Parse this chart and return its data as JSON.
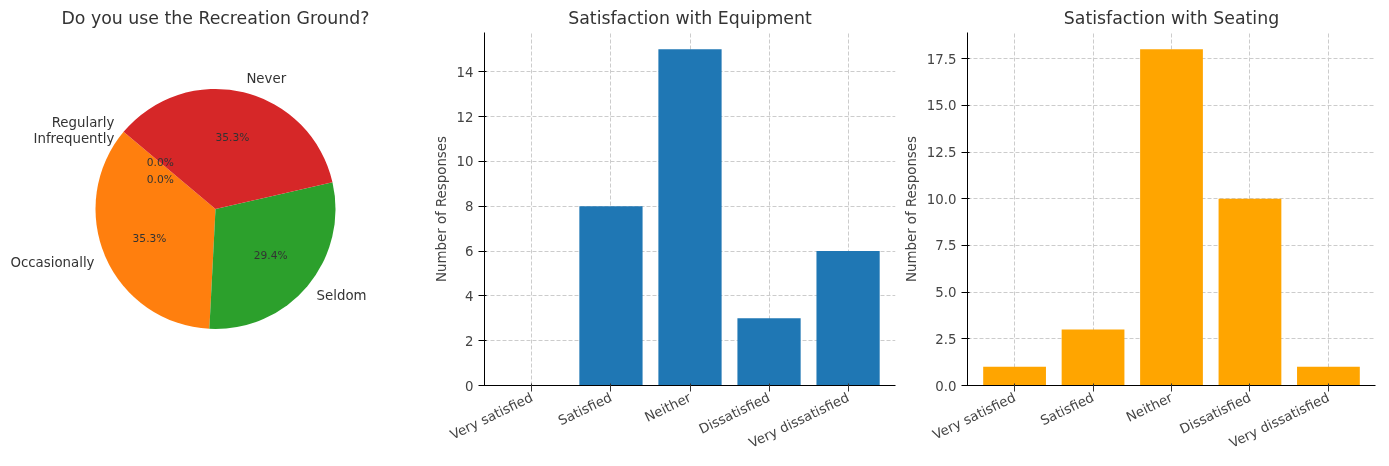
{
  "chart_data": [
    {
      "type": "pie",
      "title": "Do you use the Recreation Ground?",
      "categories": [
        "Regularly",
        "Occasionally",
        "Seldom",
        "Never",
        "Infrequently"
      ],
      "values": [
        0,
        35.3,
        29.4,
        35.3,
        0
      ],
      "colors": [
        "#1f77b4",
        "#ff7f0e",
        "#2ca02c",
        "#d62728",
        "#9467bd"
      ],
      "value_labels": [
        "0.0%",
        "35.3%",
        "29.4%",
        "35.3%",
        "0.0%"
      ]
    },
    {
      "type": "bar",
      "title": "Satisfaction with Equipment",
      "ylabel": "Number of Responses",
      "categories": [
        "Very satisfied",
        "Satisfied",
        "Neither",
        "Dissatisfied",
        "Very dissatisfied"
      ],
      "values": [
        0,
        8,
        15,
        3,
        6
      ],
      "color": "#1f77b4",
      "ylim": [
        0,
        15.75
      ],
      "yticks": [
        0,
        2,
        4,
        6,
        8,
        10,
        12,
        14
      ],
      "grid": true
    },
    {
      "type": "bar",
      "title": "Satisfaction with Seating",
      "ylabel": "Number of Responses",
      "categories": [
        "Very satisfied",
        "Satisfied",
        "Neither",
        "Dissatisfied",
        "Very dissatisfied"
      ],
      "values": [
        1,
        3,
        18,
        10,
        1
      ],
      "color": "#ffa500",
      "ylim": [
        0,
        18.9
      ],
      "yticks": [
        {
          "value": 0,
          "label": "0.0"
        },
        {
          "value": 2.5,
          "label": "2.5"
        },
        {
          "value": 5,
          "label": "5.0"
        },
        {
          "value": 7.5,
          "label": "7.5"
        },
        {
          "value": 10,
          "label": "10.0"
        },
        {
          "value": 12.5,
          "label": "12.5"
        },
        {
          "value": 15,
          "label": "15.0"
        },
        {
          "value": 17.5,
          "label": "17.5"
        }
      ],
      "grid": true
    }
  ]
}
